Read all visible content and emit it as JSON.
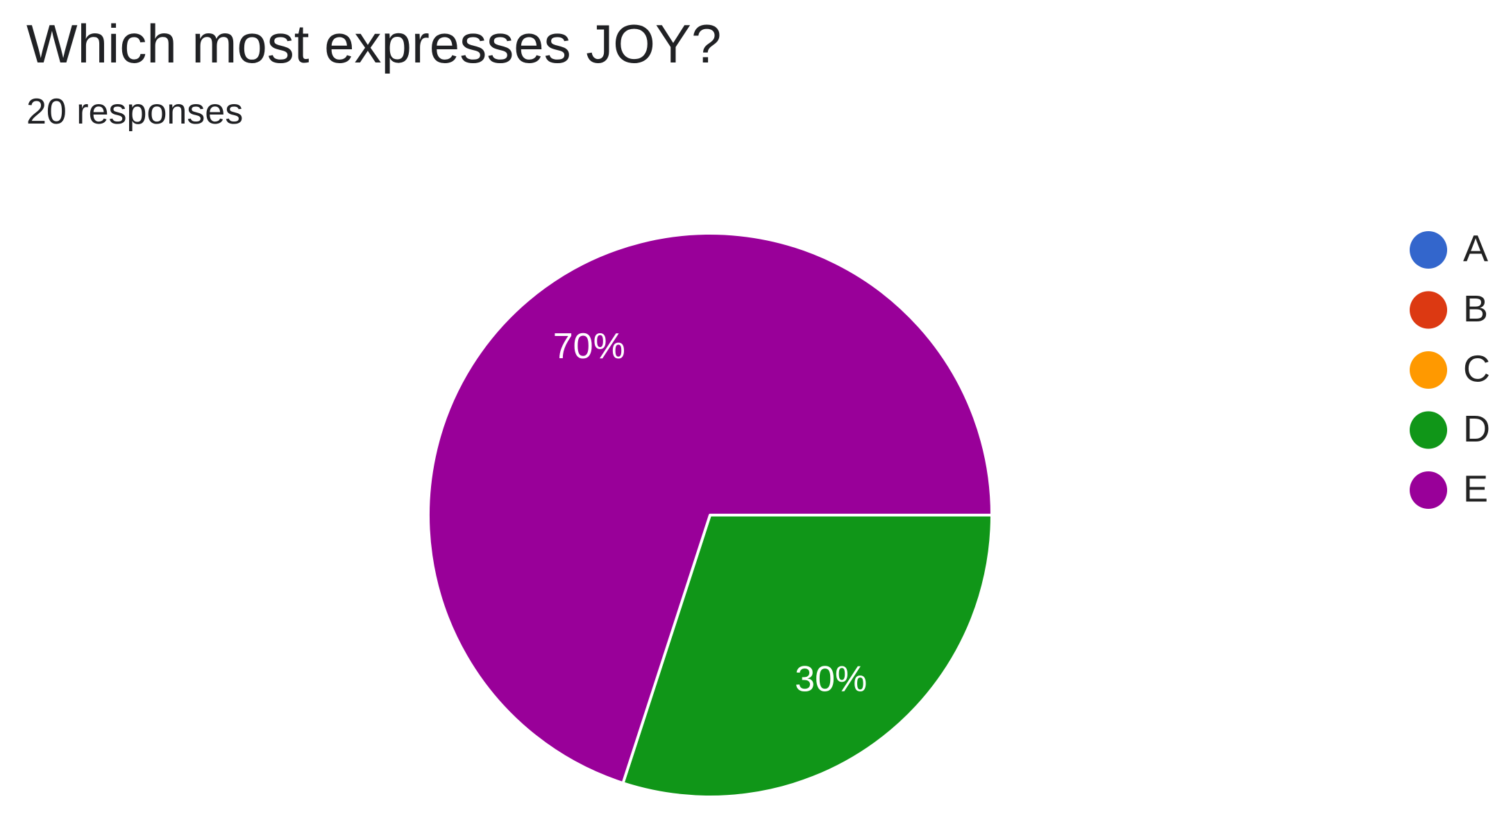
{
  "chart_data": {
    "type": "pie",
    "title": "Which most expresses JOY?",
    "subtitle": "20 responses",
    "categories": [
      "A",
      "B",
      "C",
      "D",
      "E"
    ],
    "values": [
      0,
      0,
      0,
      30,
      70
    ],
    "value_labels": [
      null,
      null,
      null,
      "30%",
      "70%"
    ],
    "colors": [
      "#3366cc",
      "#dc3912",
      "#ff9900",
      "#109618",
      "#990099"
    ],
    "legend": "right"
  }
}
